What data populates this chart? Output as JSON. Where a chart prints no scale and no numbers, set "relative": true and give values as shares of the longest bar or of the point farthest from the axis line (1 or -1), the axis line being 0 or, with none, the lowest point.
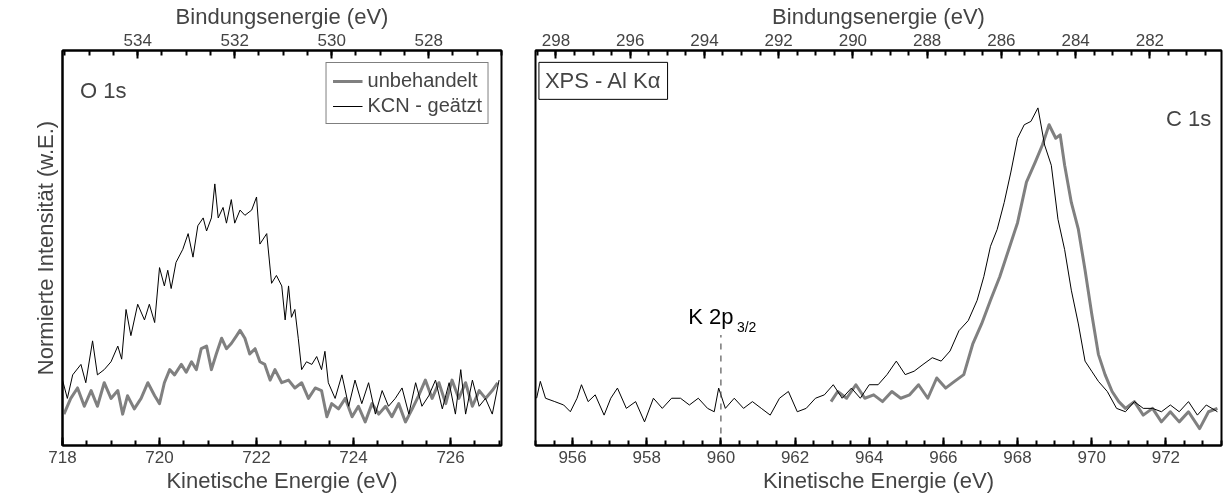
{
  "chart_data": [
    {
      "type": "line",
      "relative": true,
      "xlabel": "Kinetische Energie (eV)",
      "x2label": "Bindungsenergie (eV)",
      "ylabel": "Normierte Intensität (w.E.)",
      "xlim": [
        718,
        727.05
      ],
      "xticks": [
        718,
        720,
        722,
        724,
        726
      ],
      "x2lim": [
        535.55,
        526.5
      ],
      "x2ticks": [
        534,
        532,
        530,
        528
      ],
      "tick_labels": "x",
      "grid": false,
      "legend": "top right",
      "marker": "none",
      "line_style": "solid",
      "annotations": [
        "O 1s"
      ],
      "series": [
        {
          "name": "unbehandelt",
          "color": "#808080",
          "x": [
            718.03,
            718.17,
            718.31,
            718.45,
            718.59,
            718.72,
            718.86,
            719.0,
            719.14,
            719.24,
            719.34,
            719.48,
            719.62,
            719.76,
            719.9,
            720.0,
            720.1,
            720.21,
            720.31,
            720.45,
            720.55,
            720.66,
            720.76,
            720.86,
            720.97,
            721.07,
            721.17,
            721.28,
            721.38,
            721.48,
            721.59,
            721.66,
            721.76,
            721.86,
            721.97,
            722.07,
            722.17,
            722.28,
            722.38,
            722.52,
            722.66,
            722.79,
            722.93,
            723.07,
            723.21,
            723.34,
            723.45,
            723.55,
            723.69,
            723.83,
            723.97,
            724.1,
            724.24,
            724.38,
            724.52,
            724.66,
            724.79,
            724.93,
            725.07,
            725.21,
            725.34,
            725.48,
            725.62,
            725.76,
            725.9,
            726.03,
            726.17,
            726.31,
            726.45,
            726.59,
            726.72,
            726.86,
            726.97
          ],
          "values": [
            0.12,
            0.18,
            0.22,
            0.15,
            0.21,
            0.15,
            0.24,
            0.18,
            0.21,
            0.12,
            0.19,
            0.14,
            0.18,
            0.24,
            0.19,
            0.16,
            0.24,
            0.29,
            0.27,
            0.31,
            0.28,
            0.32,
            0.29,
            0.37,
            0.38,
            0.29,
            0.35,
            0.41,
            0.37,
            0.39,
            0.42,
            0.44,
            0.41,
            0.35,
            0.37,
            0.32,
            0.31,
            0.25,
            0.29,
            0.24,
            0.25,
            0.22,
            0.24,
            0.18,
            0.22,
            0.21,
            0.11,
            0.16,
            0.14,
            0.18,
            0.11,
            0.15,
            0.09,
            0.16,
            0.12,
            0.15,
            0.11,
            0.16,
            0.09,
            0.14,
            0.19,
            0.25,
            0.18,
            0.24,
            0.16,
            0.25,
            0.18,
            0.24,
            0.15,
            0.21,
            0.18,
            0.21,
            0.24
          ]
        },
        {
          "name": "KCN - geätzt",
          "color": "#000000",
          "x": [
            718.0,
            718.1,
            718.21,
            718.38,
            718.48,
            718.62,
            718.72,
            718.86,
            719.0,
            719.14,
            719.22,
            719.31,
            719.41,
            719.55,
            719.69,
            719.79,
            719.9,
            720.0,
            720.1,
            720.17,
            720.24,
            720.34,
            720.48,
            720.59,
            720.69,
            720.79,
            720.9,
            720.97,
            721.07,
            721.14,
            721.21,
            721.31,
            721.38,
            721.48,
            721.55,
            721.66,
            721.76,
            721.9,
            722.0,
            722.07,
            722.21,
            722.31,
            722.41,
            722.52,
            722.59,
            722.66,
            722.72,
            722.79,
            722.86,
            722.93,
            723.03,
            723.14,
            723.24,
            723.34,
            723.41,
            723.48,
            723.62,
            723.76,
            723.9,
            724.03,
            724.17,
            724.31,
            724.45,
            724.59,
            724.72,
            724.86,
            725.0,
            725.14,
            725.28,
            725.41,
            725.55,
            725.69,
            725.83,
            725.97,
            726.1,
            726.21,
            726.31,
            726.45,
            726.59,
            726.72,
            726.86,
            727.0
          ],
          "values": [
            0.25,
            0.18,
            0.27,
            0.31,
            0.24,
            0.4,
            0.27,
            0.29,
            0.32,
            0.38,
            0.33,
            0.52,
            0.42,
            0.54,
            0.48,
            0.54,
            0.47,
            0.68,
            0.61,
            0.67,
            0.6,
            0.7,
            0.75,
            0.81,
            0.72,
            0.84,
            0.87,
            0.82,
            0.87,
            1.0,
            0.87,
            0.91,
            0.85,
            0.94,
            0.85,
            0.9,
            0.88,
            0.9,
            0.95,
            0.77,
            0.81,
            0.62,
            0.65,
            0.61,
            0.48,
            0.61,
            0.49,
            0.52,
            0.41,
            0.29,
            0.32,
            0.31,
            0.34,
            0.29,
            0.36,
            0.24,
            0.18,
            0.27,
            0.15,
            0.25,
            0.16,
            0.24,
            0.12,
            0.21,
            0.15,
            0.18,
            0.22,
            0.12,
            0.24,
            0.15,
            0.19,
            0.25,
            0.14,
            0.24,
            0.12,
            0.29,
            0.12,
            0.25,
            0.15,
            0.18,
            0.12,
            0.25
          ]
        }
      ]
    },
    {
      "type": "line",
      "relative": true,
      "xlabel": "Kinetische Energie (eV)",
      "x2label": "Bindungsenergie (eV)",
      "xlim": [
        955,
        973.5
      ],
      "xticks": [
        956,
        958,
        960,
        962,
        964,
        966,
        968,
        970,
        972
      ],
      "x2lim": [
        298.55,
        280.07
      ],
      "x2ticks": [
        298,
        296,
        294,
        292,
        290,
        288,
        286,
        284,
        282
      ],
      "tick_labels": "x",
      "grid": false,
      "marker": "none",
      "line_style": "solid",
      "annotations": [
        "C 1s",
        "XPS - Al Kα"
      ],
      "ref_lines": [
        {
          "axis": "x",
          "value": 960,
          "label": "K 2p$_{3/2}$",
          "line_style": "dashed",
          "color": "#555555"
        }
      ],
      "series": [
        {
          "color": "#808080",
          "x": [
            962.97,
            963.15,
            963.39,
            963.64,
            963.88,
            964.12,
            964.36,
            964.61,
            964.85,
            965.09,
            965.33,
            965.58,
            965.82,
            966.06,
            966.3,
            966.55,
            966.79,
            967.03,
            967.27,
            967.52,
            967.76,
            968.0,
            968.24,
            968.48,
            968.67,
            968.85,
            969.03,
            969.15,
            969.27,
            969.45,
            969.64,
            969.82,
            970.0,
            970.18,
            970.36,
            970.55,
            970.73,
            970.91,
            971.15,
            971.39,
            971.64,
            971.88,
            972.12,
            972.36,
            972.61,
            972.91,
            973.15,
            973.39
          ],
          "values": [
            0.13,
            0.16,
            0.14,
            0.18,
            0.14,
            0.15,
            0.13,
            0.16,
            0.14,
            0.15,
            0.18,
            0.14,
            0.2,
            0.17,
            0.19,
            0.21,
            0.3,
            0.36,
            0.43,
            0.5,
            0.58,
            0.66,
            0.78,
            0.84,
            0.89,
            0.95,
            0.91,
            0.92,
            0.83,
            0.72,
            0.64,
            0.52,
            0.39,
            0.27,
            0.21,
            0.16,
            0.13,
            0.11,
            0.13,
            0.09,
            0.11,
            0.07,
            0.1,
            0.07,
            0.1,
            0.05,
            0.1,
            0.11
          ]
        },
        {
          "color": "#000000",
          "x": [
            955.03,
            955.13,
            955.27,
            955.52,
            955.76,
            955.94,
            956.12,
            956.24,
            956.42,
            956.61,
            956.85,
            957.03,
            957.21,
            957.45,
            957.7,
            957.94,
            958.18,
            958.42,
            958.67,
            958.91,
            959.15,
            959.39,
            959.64,
            959.82,
            959.94,
            960.12,
            960.36,
            960.61,
            960.85,
            961.09,
            961.33,
            961.58,
            961.82,
            962.06,
            962.3,
            962.55,
            962.79,
            963.03,
            963.27,
            963.52,
            963.76,
            964.0,
            964.24,
            964.48,
            964.73,
            964.97,
            965.21,
            965.45,
            965.7,
            965.94,
            966.18,
            966.42,
            966.67,
            966.91,
            967.09,
            967.27,
            967.45,
            967.64,
            967.82,
            968.0,
            968.18,
            968.36,
            968.55,
            968.73,
            968.91,
            969.09,
            969.27,
            969.45,
            969.64,
            969.82,
            970.0,
            970.18,
            970.42,
            970.67,
            970.91,
            971.15,
            971.39,
            971.64,
            971.88,
            972.12,
            972.36,
            972.61,
            972.85,
            973.09,
            973.39
          ],
          "values": [
            0.14,
            0.19,
            0.14,
            0.13,
            0.12,
            0.1,
            0.14,
            0.18,
            0.13,
            0.15,
            0.09,
            0.14,
            0.17,
            0.11,
            0.13,
            0.07,
            0.14,
            0.11,
            0.14,
            0.14,
            0.12,
            0.14,
            0.11,
            0.1,
            0.17,
            0.11,
            0.14,
            0.11,
            0.13,
            0.11,
            0.09,
            0.14,
            0.16,
            0.1,
            0.11,
            0.14,
            0.15,
            0.18,
            0.14,
            0.17,
            0.14,
            0.18,
            0.18,
            0.21,
            0.25,
            0.21,
            0.22,
            0.24,
            0.26,
            0.25,
            0.28,
            0.34,
            0.37,
            0.43,
            0.5,
            0.59,
            0.64,
            0.72,
            0.81,
            0.91,
            0.95,
            0.96,
            1.0,
            0.89,
            0.83,
            0.67,
            0.58,
            0.46,
            0.36,
            0.25,
            0.22,
            0.19,
            0.16,
            0.11,
            0.1,
            0.13,
            0.11,
            0.11,
            0.1,
            0.12,
            0.1,
            0.13,
            0.09,
            0.12,
            0.1
          ]
        }
      ]
    }
  ]
}
